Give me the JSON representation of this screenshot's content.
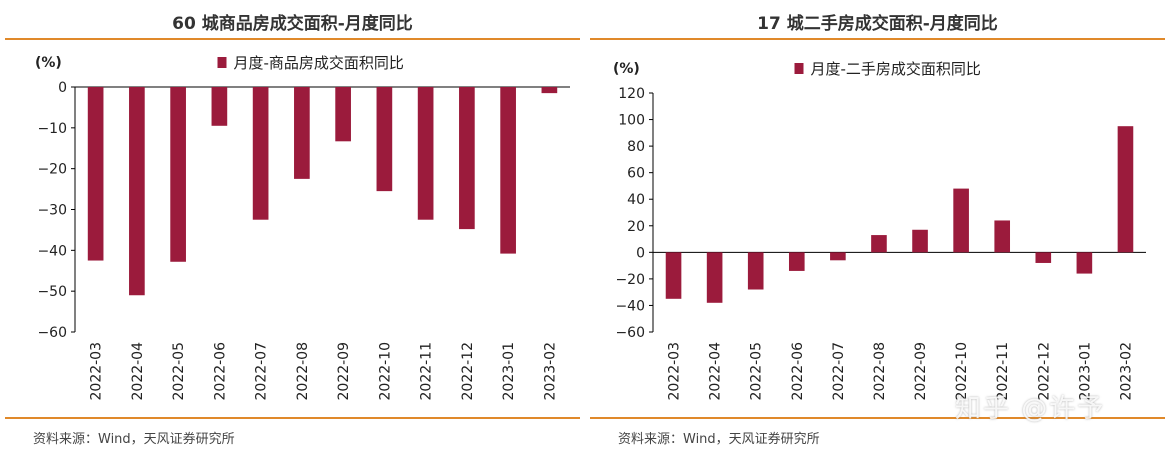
{
  "left_panel": {
    "title": "60 城商品房成交面积-月度同比",
    "source": "资料来源：Wind，天风证券研究所"
  },
  "right_panel": {
    "title": "17 城二手房成交面积-月度同比",
    "source": "资料来源：Wind，天风证券研究所"
  },
  "watermark": "知乎 @许予",
  "colors": {
    "bar": "#9b1b3c",
    "rule": "#e0892a"
  },
  "chart_data": [
    {
      "type": "bar",
      "ylabel": "(%)",
      "categories": [
        "2022-03",
        "2022-04",
        "2022-05",
        "2022-06",
        "2022-07",
        "2022-08",
        "2022-09",
        "2022-10",
        "2022-11",
        "2022-12",
        "2023-01",
        "2023-02"
      ],
      "series": [
        {
          "name": "月度-商品房成交面积同比",
          "values": [
            -42.5,
            -51,
            -42.8,
            -9.5,
            -32.5,
            -22.5,
            -13.3,
            -25.5,
            -32.5,
            -34.8,
            -40.8,
            -1.5
          ]
        }
      ],
      "ylim": [
        -60,
        0
      ],
      "yticks": [
        0,
        -10,
        -20,
        -30,
        -40,
        -50,
        -60
      ],
      "legend": "top-center",
      "grid": false
    },
    {
      "type": "bar",
      "ylabel": "(%)",
      "categories": [
        "2022-03",
        "2022-04",
        "2022-05",
        "2022-06",
        "2022-07",
        "2022-08",
        "2022-09",
        "2022-10",
        "2022-11",
        "2022-12",
        "2023-01",
        "2023-02"
      ],
      "series": [
        {
          "name": "月度-二手房成交面积同比",
          "values": [
            -35,
            -38,
            -28,
            -14,
            -6,
            13,
            17,
            48,
            24,
            -8,
            -16,
            95
          ]
        }
      ],
      "ylim": [
        -60,
        120
      ],
      "yticks": [
        120,
        100,
        80,
        60,
        40,
        20,
        0,
        -20,
        -40,
        -60
      ],
      "legend": "top-center",
      "grid": false
    }
  ]
}
